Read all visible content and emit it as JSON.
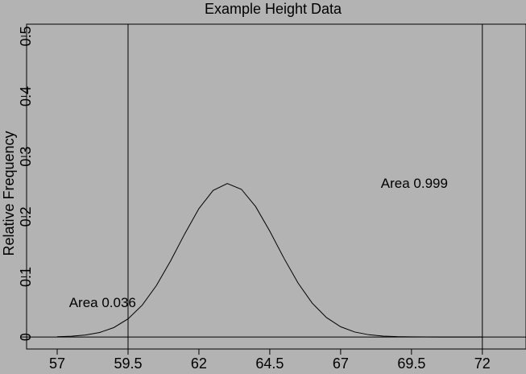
{
  "chart_data": {
    "type": "line",
    "title": "Example Height Data",
    "xlabel": "",
    "ylabel": "Relative Frequency",
    "xlim": [
      55.92,
      73.54
    ],
    "ylim": [
      -0.02,
      0.52
    ],
    "x_ticks": [
      57,
      59.5,
      62,
      64.5,
      67,
      69.5,
      72
    ],
    "x_tick_labels": [
      "57",
      "59.5",
      "62",
      "64.5",
      "67",
      "69.5",
      "72"
    ],
    "y_ticks": [
      0,
      0.1,
      0.2,
      0.3,
      0.4,
      0.5
    ],
    "y_tick_labels": [
      "0",
      "0.1",
      "0.2",
      "0.3",
      "0.4",
      "0.5"
    ],
    "grid": false,
    "background": "#b3b3b3",
    "line_color": "#000000",
    "series": [
      {
        "x": [
          57,
          57.5,
          58,
          58.5,
          59,
          59.5,
          60,
          60.5,
          61,
          61.5,
          62,
          62.5,
          63,
          63.5,
          64,
          64.5,
          65,
          65.5,
          66,
          66.5,
          67,
          67.5,
          68,
          68.5,
          69,
          69.5,
          70,
          70.5,
          71,
          71.5,
          72
        ],
        "values": [
          0.0005,
          0.0013,
          0.0033,
          0.0075,
          0.0157,
          0.0301,
          0.0529,
          0.0855,
          0.1264,
          0.1715,
          0.2134,
          0.2436,
          0.2552,
          0.2455,
          0.2169,
          0.176,
          0.131,
          0.0895,
          0.0561,
          0.0323,
          0.017,
          0.0082,
          0.0037,
          0.0015,
          0.0006,
          0.0002,
          0.0001,
          0.0,
          0.0,
          0.0,
          0.0
        ]
      }
    ],
    "vertical_lines": [
      59.5,
      72
    ],
    "hline": 0,
    "annotations": [
      {
        "text": "Area 0.036",
        "x": 58.6,
        "y": 0.05
      },
      {
        "text": "Area 0.999",
        "x": 69.6,
        "y": 0.248
      }
    ]
  }
}
